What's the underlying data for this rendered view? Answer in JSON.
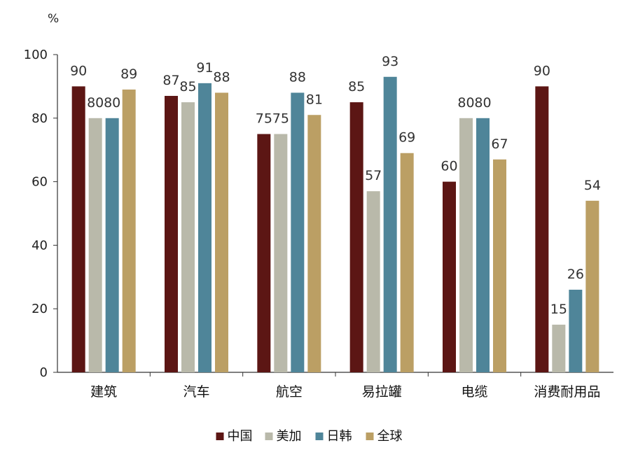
{
  "chart_data": {
    "type": "bar",
    "unit": "%",
    "categories": [
      "建筑",
      "汽车",
      "航空",
      "易拉罐",
      "电缆",
      "消费耐用品"
    ],
    "series": [
      {
        "name": "中国",
        "color": "#5c1614",
        "values": [
          90,
          87,
          75,
          85,
          60,
          90
        ]
      },
      {
        "name": "美加",
        "color": "#b9b9aa",
        "values": [
          80,
          85,
          75,
          57,
          80,
          15
        ]
      },
      {
        "name": "日韩",
        "color": "#4f8599",
        "values": [
          80,
          91,
          88,
          93,
          80,
          26
        ]
      },
      {
        "name": "全球",
        "color": "#bb9f64",
        "values": [
          89,
          88,
          81,
          69,
          67,
          54
        ]
      }
    ],
    "ylim": [
      0,
      100
    ],
    "yticks": [
      0,
      20,
      40,
      60,
      80,
      100
    ],
    "grid": false,
    "legend_position": "bottom"
  }
}
